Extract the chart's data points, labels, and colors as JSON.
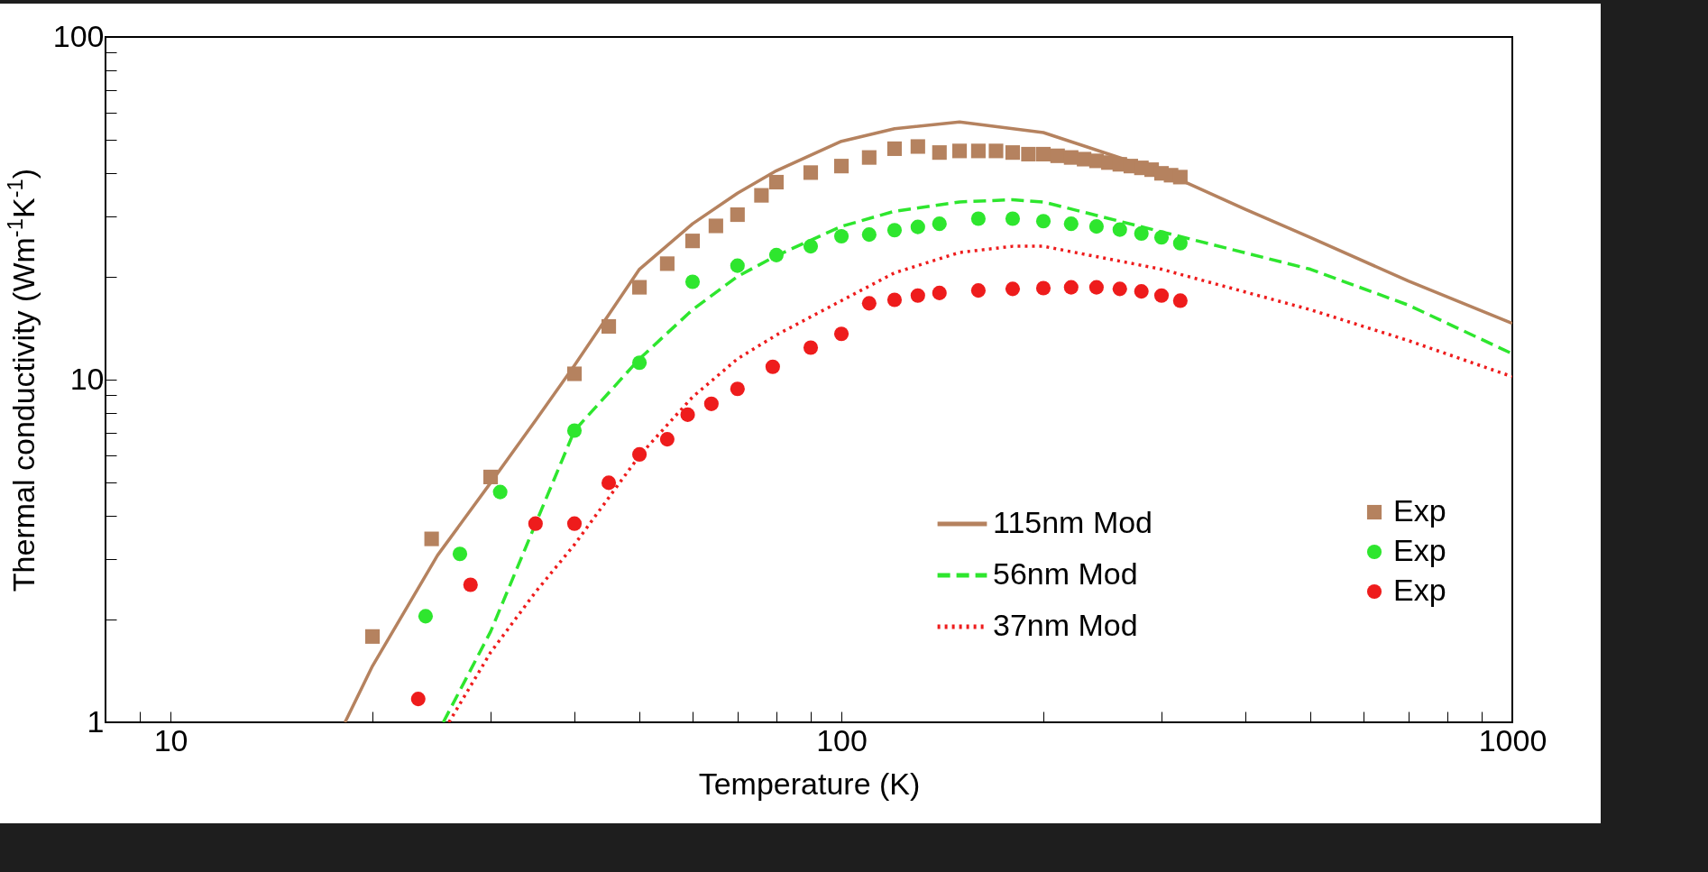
{
  "chart_data": {
    "type": "line",
    "xlabel": "Temperature (K)",
    "ylabel": "Thermal conductivity (Wm$^{-1}$K$^{-1}$)",
    "log": "xy",
    "xlim": [
      8,
      1000
    ],
    "ylim": [
      1,
      100
    ],
    "xticks": [
      {
        "value": 9,
        "label": null
      },
      10,
      {
        "value": 20,
        "label": null
      },
      {
        "value": 30,
        "label": null
      },
      {
        "value": 40,
        "label": null
      },
      {
        "value": 50,
        "label": null
      },
      {
        "value": 60,
        "label": null
      },
      {
        "value": 70,
        "label": null
      },
      {
        "value": 80,
        "label": null
      },
      {
        "value": 90,
        "label": null
      },
      100,
      {
        "value": 200,
        "label": null
      },
      {
        "value": 300,
        "label": null
      },
      {
        "value": 400,
        "label": null
      },
      {
        "value": 500,
        "label": null
      },
      {
        "value": 600,
        "label": null
      },
      {
        "value": 700,
        "label": null
      },
      {
        "value": 800,
        "label": null
      },
      {
        "value": 900,
        "label": null
      },
      1000
    ],
    "yticks": [
      1,
      {
        "value": 2,
        "label": null
      },
      {
        "value": 3,
        "label": null
      },
      {
        "value": 4,
        "label": null
      },
      {
        "value": 5,
        "label": null
      },
      {
        "value": 6,
        "label": null
      },
      {
        "value": 7,
        "label": null
      },
      {
        "value": 8,
        "label": null
      },
      {
        "value": 9,
        "label": null
      },
      10,
      {
        "value": 20,
        "label": null
      },
      {
        "value": 30,
        "label": null
      },
      {
        "value": 40,
        "label": null
      },
      {
        "value": 50,
        "label": null
      },
      {
        "value": 60,
        "label": null
      },
      {
        "value": 70,
        "label": null
      },
      {
        "value": 80,
        "label": null
      },
      {
        "value": 90,
        "label": null
      },
      100
    ],
    "legend": "bottom right",
    "grid": false,
    "series": [
      {
        "name": "115nm Mod",
        "type": "line",
        "color": "#b5825f",
        "line_style": "solid",
        "x": [
          18.2,
          20,
          25,
          30,
          35,
          40,
          50,
          60,
          70,
          80,
          100,
          120,
          150,
          200,
          300,
          400,
          500,
          700,
          1000
        ],
        "values": [
          1,
          1.46,
          3.07,
          5.0,
          7.6,
          11,
          21,
          28.5,
          35,
          40.7,
          49.6,
          54,
          56.5,
          52.6,
          40.5,
          31.4,
          26,
          19.4,
          14.6
        ]
      },
      {
        "name": "Exp",
        "type": "scatter",
        "color": "#b5825f",
        "marker": "square",
        "x": [
          20,
          24.5,
          30,
          40,
          45,
          50,
          55,
          60,
          65,
          70,
          76,
          80,
          90,
          100,
          110,
          120,
          130,
          140,
          150,
          160,
          170,
          180,
          190,
          200,
          210,
          220,
          230,
          240,
          250,
          260,
          270,
          280,
          290,
          300,
          310,
          320
        ],
        "values": [
          1.78,
          3.43,
          5.2,
          10.4,
          14.3,
          18.6,
          21.8,
          25.4,
          28.1,
          30.3,
          34.5,
          37.7,
          40.2,
          42,
          44.5,
          47.2,
          47.9,
          46,
          46.5,
          46.5,
          46.5,
          46,
          45.5,
          45.5,
          45,
          44.5,
          44,
          43.5,
          43,
          42.5,
          42,
          41.5,
          41,
          40,
          39.5,
          39
        ]
      },
      {
        "name": "56nm Mod",
        "type": "line",
        "color": "#2ee62e",
        "line_style": "dashed",
        "x": [
          25.5,
          30,
          40,
          50,
          60,
          70,
          80,
          100,
          120,
          150,
          180,
          200,
          300,
          500,
          700,
          1000
        ],
        "values": [
          1,
          1.84,
          7.1,
          11.5,
          16,
          20,
          23,
          28,
          31,
          33,
          33.5,
          33,
          27,
          21,
          16.5,
          11.9
        ]
      },
      {
        "name": "Exp",
        "type": "scatter",
        "color": "#2ee62e",
        "marker": "circle",
        "x": [
          24,
          27,
          31,
          40,
          50,
          60,
          70,
          80,
          90,
          100,
          110,
          120,
          130,
          140,
          160,
          180,
          200,
          220,
          240,
          260,
          280,
          300,
          320
        ],
        "values": [
          2.04,
          3.1,
          4.7,
          7.1,
          11.2,
          19.3,
          21.5,
          23.1,
          24.5,
          26.2,
          26.5,
          27.3,
          27.9,
          28.5,
          29.5,
          29.5,
          29,
          28.5,
          28,
          27.4,
          26.7,
          26,
          25
        ]
      },
      {
        "name": "37nm Mod",
        "type": "line",
        "color": "#ee1c1c",
        "line_style": "dotted",
        "x": [
          26,
          30,
          35,
          40,
          50,
          60,
          70,
          80,
          100,
          120,
          150,
          180,
          200,
          300,
          500,
          700,
          1000
        ],
        "values": [
          1,
          1.6,
          2.4,
          3.3,
          6,
          8.9,
          11.5,
          13.5,
          17,
          20.5,
          23.5,
          24.5,
          24.5,
          21,
          16,
          13,
          10.2
        ]
      },
      {
        "name": "Exp",
        "type": "scatter",
        "color": "#ee1c1c",
        "marker": "circle",
        "x": [
          23.4,
          28,
          35,
          40,
          45,
          50,
          55,
          59,
          64,
          70,
          79,
          90,
          100,
          110,
          120,
          130,
          140,
          160,
          180,
          200,
          220,
          240,
          260,
          280,
          300,
          320
        ],
        "values": [
          1.17,
          2.52,
          3.8,
          3.8,
          5.0,
          6.05,
          6.7,
          7.9,
          8.5,
          9.4,
          10.9,
          12.4,
          13.6,
          16.7,
          17.1,
          17.6,
          17.9,
          18.2,
          18.4,
          18.5,
          18.6,
          18.6,
          18.4,
          18.1,
          17.6,
          17
        ]
      }
    ]
  }
}
